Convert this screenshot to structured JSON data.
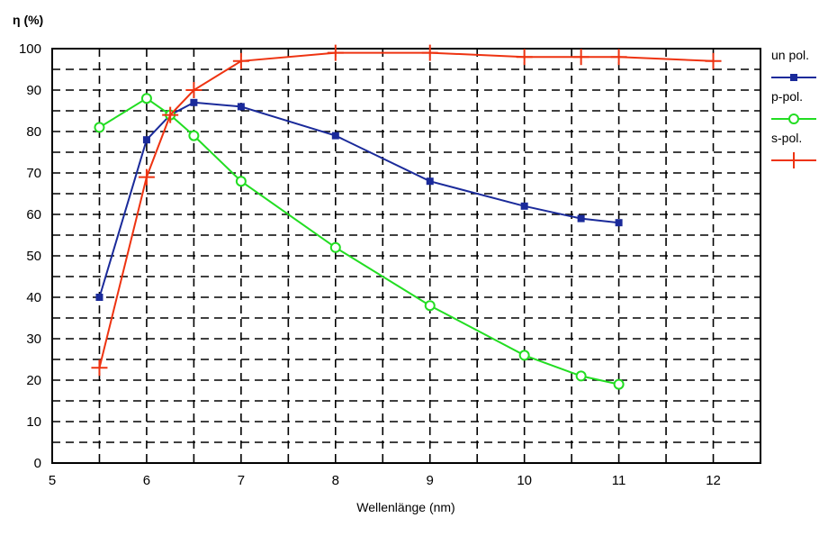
{
  "chart_data": {
    "type": "line",
    "title": "η (%)",
    "xlabel": "Wellenlänge (nm)",
    "ylabel": "η (%)",
    "xlim": [
      5,
      12.5
    ],
    "ylim": [
      0,
      100
    ],
    "x_ticks": [
      5,
      6,
      7,
      8,
      9,
      10,
      11,
      12
    ],
    "y_ticks": [
      0,
      10,
      20,
      30,
      40,
      50,
      60,
      70,
      80,
      90,
      100
    ],
    "grid": true,
    "grid_style": "dashed",
    "legend_position": "right",
    "series": [
      {
        "name": "un pol.",
        "color": "#1a2a9a",
        "marker": "square",
        "points": [
          [
            5.5,
            40
          ],
          [
            6.0,
            78
          ],
          [
            6.25,
            84
          ],
          [
            6.5,
            87
          ],
          [
            7.0,
            86
          ],
          [
            8.0,
            79
          ],
          [
            9.0,
            68
          ],
          [
            10.0,
            62
          ],
          [
            10.6,
            59
          ],
          [
            11.0,
            58
          ]
        ]
      },
      {
        "name": "p-pol.",
        "color": "#22dd22",
        "marker": "circle",
        "points": [
          [
            5.5,
            81
          ],
          [
            6.0,
            88
          ],
          [
            6.25,
            84
          ],
          [
            6.5,
            79
          ],
          [
            7.0,
            68
          ],
          [
            8.0,
            52
          ],
          [
            9.0,
            38
          ],
          [
            10.0,
            26
          ],
          [
            10.6,
            21
          ],
          [
            11.0,
            19
          ]
        ]
      },
      {
        "name": "s-pol.",
        "color": "#ee3311",
        "marker": "plus",
        "points": [
          [
            5.5,
            23
          ],
          [
            6.0,
            69
          ],
          [
            6.25,
            84
          ],
          [
            6.5,
            90
          ],
          [
            7.0,
            97
          ],
          [
            8.0,
            99
          ],
          [
            9.0,
            99
          ],
          [
            10.0,
            98
          ],
          [
            10.6,
            98
          ],
          [
            11.0,
            98
          ],
          [
            12.0,
            97
          ]
        ]
      }
    ]
  }
}
